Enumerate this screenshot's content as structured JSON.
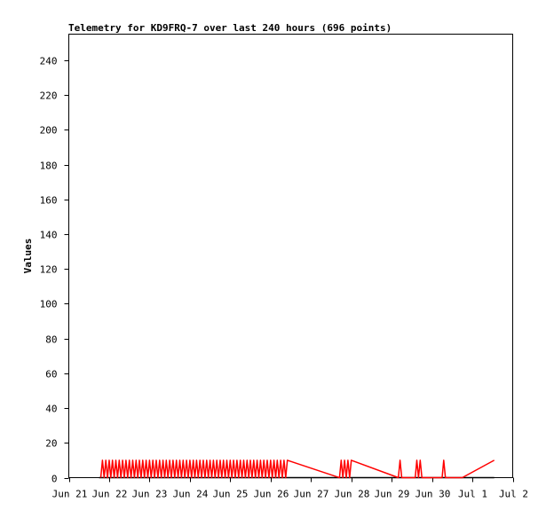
{
  "chart_data": {
    "type": "line",
    "title": "Telemetry for KD9FRQ-7 over last 240 hours (696 points)",
    "ylabel": "Values",
    "xlabel": "",
    "ylim": [
      0,
      255
    ],
    "y_ticks": [
      0,
      20,
      40,
      60,
      80,
      100,
      120,
      140,
      160,
      180,
      200,
      220,
      240
    ],
    "x_ticks": [
      {
        "x": "2024-06-21",
        "label": "Jun 21"
      },
      {
        "x": "2024-06-22",
        "label": "Jun 22"
      },
      {
        "x": "2024-06-23",
        "label": "Jun 23"
      },
      {
        "x": "2024-06-24",
        "label": "Jun 24"
      },
      {
        "x": "2024-06-25",
        "label": "Jun 25"
      },
      {
        "x": "2024-06-26",
        "label": "Jun 26"
      },
      {
        "x": "2024-06-27",
        "label": "Jun 27"
      },
      {
        "x": "2024-06-28",
        "label": "Jun 28"
      },
      {
        "x": "2024-06-29",
        "label": "Jun 29"
      },
      {
        "x": "2024-06-30",
        "label": "Jun 30"
      },
      {
        "x": "2024-07-01",
        "label": "Jul 1"
      },
      {
        "x": "2024-07-02",
        "label": "Jul 2"
      }
    ],
    "series": [
      {
        "color": "#ff0000",
        "x": [
          "2024-06-21 19:00",
          "2024-06-21 20:00",
          "2024-06-21 21:00",
          "2024-06-21 22:00",
          "2024-06-21 23:00",
          "2024-06-22 00:00",
          "2024-06-22 01:00",
          "2024-06-22 02:00",
          "2024-06-22 03:00",
          "2024-06-22 04:00",
          "2024-06-22 05:00",
          "2024-06-22 06:00",
          "2024-06-22 07:00",
          "2024-06-22 08:00",
          "2024-06-22 09:00",
          "2024-06-22 10:00",
          "2024-06-22 11:00",
          "2024-06-22 12:00",
          "2024-06-22 13:00",
          "2024-06-22 14:00",
          "2024-06-22 15:00",
          "2024-06-22 16:00",
          "2024-06-22 17:00",
          "2024-06-22 18:00",
          "2024-06-22 19:00",
          "2024-06-22 20:00",
          "2024-06-22 21:00",
          "2024-06-22 22:00",
          "2024-06-22 23:00",
          "2024-06-23 00:00",
          "2024-06-23 01:00",
          "2024-06-23 02:00",
          "2024-06-23 03:00",
          "2024-06-23 04:00",
          "2024-06-23 05:00",
          "2024-06-23 06:00",
          "2024-06-23 07:00",
          "2024-06-23 08:00",
          "2024-06-23 09:00",
          "2024-06-23 10:00",
          "2024-06-23 11:00",
          "2024-06-23 12:00",
          "2024-06-23 13:00",
          "2024-06-23 14:00",
          "2024-06-23 15:00",
          "2024-06-23 16:00",
          "2024-06-23 17:00",
          "2024-06-23 18:00",
          "2024-06-23 19:00",
          "2024-06-23 20:00",
          "2024-06-23 21:00",
          "2024-06-23 22:00",
          "2024-06-23 23:00",
          "2024-06-24 00:00",
          "2024-06-24 01:00",
          "2024-06-24 02:00",
          "2024-06-24 03:00",
          "2024-06-24 04:00",
          "2024-06-24 05:00",
          "2024-06-24 06:00",
          "2024-06-24 07:00",
          "2024-06-24 08:00",
          "2024-06-24 09:00",
          "2024-06-24 10:00",
          "2024-06-24 11:00",
          "2024-06-24 12:00",
          "2024-06-24 13:00",
          "2024-06-24 14:00",
          "2024-06-24 15:00",
          "2024-06-24 16:00",
          "2024-06-24 17:00",
          "2024-06-24 18:00",
          "2024-06-24 19:00",
          "2024-06-24 20:00",
          "2024-06-24 21:00",
          "2024-06-24 22:00",
          "2024-06-24 23:00",
          "2024-06-25 00:00",
          "2024-06-25 01:00",
          "2024-06-25 02:00",
          "2024-06-25 03:00",
          "2024-06-25 04:00",
          "2024-06-25 05:00",
          "2024-06-25 06:00",
          "2024-06-25 07:00",
          "2024-06-25 08:00",
          "2024-06-25 09:00",
          "2024-06-25 10:00",
          "2024-06-25 11:00",
          "2024-06-25 12:00",
          "2024-06-25 13:00",
          "2024-06-25 14:00",
          "2024-06-25 15:00",
          "2024-06-25 16:00",
          "2024-06-25 17:00",
          "2024-06-25 18:00",
          "2024-06-25 19:00",
          "2024-06-25 20:00",
          "2024-06-25 21:00",
          "2024-06-25 22:00",
          "2024-06-25 23:00",
          "2024-06-26 00:00",
          "2024-06-26 01:00",
          "2024-06-26 02:00",
          "2024-06-26 03:00",
          "2024-06-26 04:00",
          "2024-06-26 05:00",
          "2024-06-26 06:00",
          "2024-06-26 07:00",
          "2024-06-26 08:00",
          "2024-06-26 09:00",
          "2024-06-26 10:00",
          "2024-06-27 17:00",
          "2024-06-27 18:00",
          "2024-06-27 19:00",
          "2024-06-27 20:00",
          "2024-06-27 21:00",
          "2024-06-27 22:00",
          "2024-06-27 23:00",
          "2024-06-28 00:00",
          "2024-06-29 04:00",
          "2024-06-29 05:00",
          "2024-06-29 06:00",
          "2024-06-29 14:00",
          "2024-06-29 15:00",
          "2024-06-29 16:00",
          "2024-06-29 17:00",
          "2024-06-29 18:00",
          "2024-06-30 06:00",
          "2024-06-30 07:00",
          "2024-06-30 08:00",
          "2024-06-30 18:00",
          "2024-07-01 13:00"
        ],
        "y": [
          0,
          10,
          0,
          10,
          0,
          10,
          0,
          10,
          0,
          10,
          0,
          10,
          0,
          10,
          0,
          10,
          0,
          10,
          0,
          10,
          0,
          10,
          0,
          10,
          0,
          10,
          0,
          10,
          0,
          10,
          0,
          10,
          0,
          10,
          0,
          10,
          0,
          10,
          0,
          10,
          0,
          10,
          0,
          10,
          0,
          10,
          0,
          10,
          0,
          10,
          0,
          10,
          0,
          10,
          0,
          10,
          0,
          10,
          0,
          10,
          0,
          10,
          0,
          10,
          0,
          10,
          0,
          10,
          0,
          10,
          0,
          10,
          0,
          10,
          0,
          10,
          0,
          10,
          0,
          10,
          0,
          10,
          0,
          10,
          0,
          10,
          0,
          10,
          0,
          10,
          0,
          10,
          0,
          10,
          0,
          10,
          0,
          10,
          0,
          10,
          0,
          10,
          0,
          10,
          0,
          10,
          0,
          10,
          0,
          10,
          0,
          10,
          0,
          10,
          0,
          10,
          0,
          10,
          0,
          10,
          0,
          10,
          0,
          0,
          10,
          0,
          10,
          0,
          0,
          10,
          0,
          0,
          10
        ]
      },
      {
        "color": "#000000",
        "x": [
          "2024-06-21 18:00",
          "2024-07-01 13:00"
        ],
        "y": [
          0,
          0
        ]
      }
    ],
    "grid": false,
    "legend": "none"
  }
}
